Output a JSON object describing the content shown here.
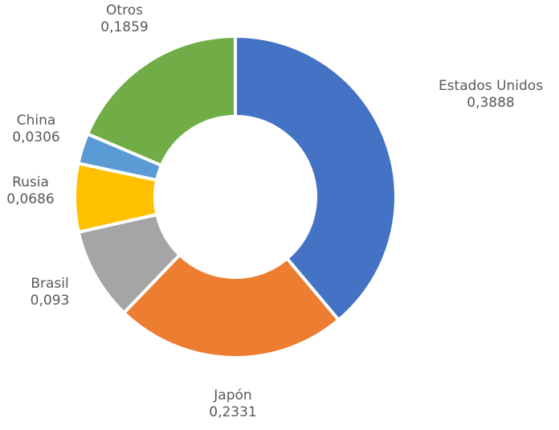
{
  "chart_data": {
    "type": "donut",
    "categories": [
      "Estados Unidos",
      "Japón",
      "Brasil",
      "Rusia",
      "China",
      "Otros"
    ],
    "values": [
      0.3888,
      0.2331,
      0.093,
      0.0686,
      0.0306,
      0.1859
    ],
    "value_labels": [
      "0,3888",
      "0,2331",
      "0,093",
      "0,0686",
      "0,0306",
      "0,1859"
    ],
    "colors": [
      "#4472c4",
      "#ed7d31",
      "#a5a5a5",
      "#ffc000",
      "#5b9bd5",
      "#70ad47"
    ]
  }
}
